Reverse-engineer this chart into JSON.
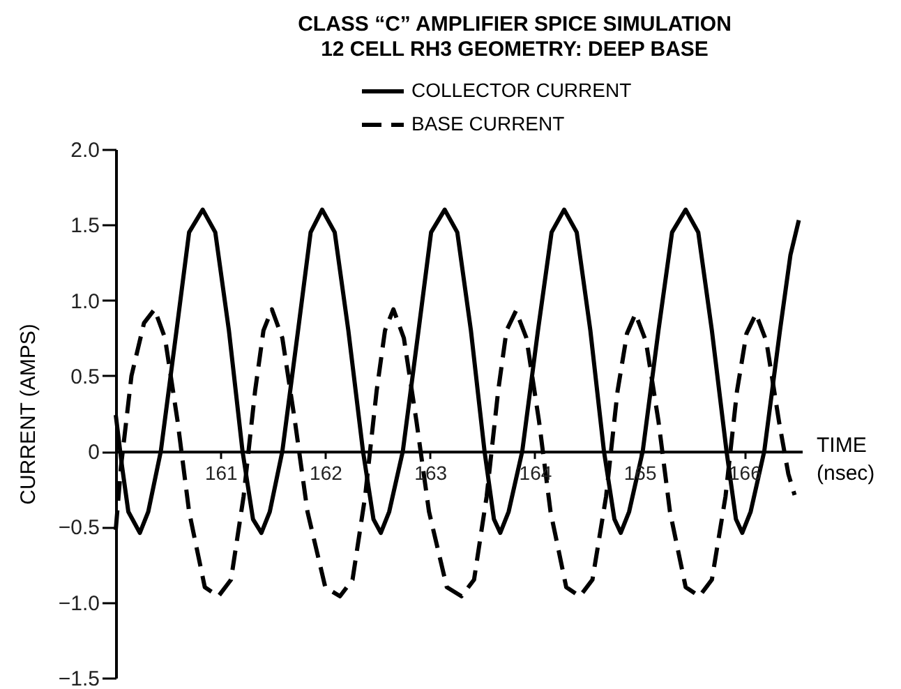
{
  "chart_data": {
    "type": "line",
    "title": "CLASS “C” AMPLIFIER SPICE SIMULATION",
    "subtitle": "12 CELL RH3 GEOMETRY: DEEP BASE",
    "xlabel": "TIME (nsec)",
    "ylabel": "CURRENT (AMPS)",
    "xlim": [
      160,
      166.55
    ],
    "xticks": [
      161,
      162,
      163,
      164,
      165,
      166
    ],
    "ylim": [
      -1.5,
      2.0
    ],
    "yticks": [
      {
        "value": 2.0,
        "label": "2.0"
      },
      {
        "value": 1.5,
        "label": "1.5"
      },
      {
        "value": 1.0,
        "label": "1.0"
      },
      {
        "value": 0.5,
        "label": "0.5"
      },
      0,
      {
        "value": -0.5,
        "label": "−0.5"
      },
      {
        "value": -1.0,
        "label": "−1.0"
      },
      {
        "value": -1.5,
        "label": "−1.5"
      }
    ],
    "grid": false,
    "legend": "top",
    "marker": "none",
    "series": [
      {
        "name": "COLLECTOR CURRENT",
        "color": "#000000",
        "line_style": "solid",
        "x": [
          160.0,
          160.06,
          160.12,
          160.23,
          160.31,
          160.43,
          160.58,
          160.7,
          160.83,
          160.95,
          161.08,
          161.21,
          161.31,
          161.39,
          161.47,
          161.59,
          161.74,
          161.86,
          161.97,
          162.09,
          162.22,
          162.36,
          162.46,
          162.53,
          162.61,
          162.74,
          162.89,
          163.01,
          163.14,
          163.26,
          163.39,
          163.52,
          163.61,
          163.67,
          163.75,
          163.88,
          164.03,
          164.16,
          164.28,
          164.4,
          164.53,
          164.66,
          164.76,
          164.82,
          164.9,
          165.03,
          165.18,
          165.31,
          165.44,
          165.56,
          165.69,
          165.83,
          165.92,
          165.98,
          166.06,
          166.19,
          166.34,
          166.44,
          166.52
        ],
        "values": [
          0.24,
          -0.1,
          -0.4,
          -0.54,
          -0.4,
          0.0,
          0.8,
          1.45,
          1.6,
          1.45,
          0.8,
          0.0,
          -0.45,
          -0.54,
          -0.4,
          0.0,
          0.8,
          1.45,
          1.6,
          1.45,
          0.8,
          0.0,
          -0.45,
          -0.54,
          -0.4,
          0.0,
          0.8,
          1.45,
          1.6,
          1.45,
          0.8,
          0.0,
          -0.45,
          -0.54,
          -0.4,
          0.0,
          0.8,
          1.45,
          1.6,
          1.45,
          0.8,
          0.0,
          -0.45,
          -0.54,
          -0.4,
          0.0,
          0.8,
          1.45,
          1.6,
          1.45,
          0.8,
          0.0,
          -0.45,
          -0.54,
          -0.4,
          0.0,
          0.8,
          1.3,
          1.53
        ]
      },
      {
        "name": "BASE CURRENT",
        "color": "#000000",
        "line_style": "dashed",
        "x": [
          160.0,
          160.05,
          160.15,
          160.27,
          160.37,
          160.47,
          160.59,
          160.7,
          160.85,
          160.98,
          161.1,
          161.22,
          161.33,
          161.41,
          161.49,
          161.59,
          161.71,
          161.83,
          162.0,
          162.14,
          162.26,
          162.38,
          162.49,
          162.57,
          162.65,
          162.75,
          162.87,
          162.99,
          163.16,
          163.3,
          163.42,
          163.54,
          163.65,
          163.73,
          163.82,
          163.92,
          164.04,
          164.15,
          164.3,
          164.43,
          164.55,
          164.68,
          164.79,
          164.88,
          164.96,
          165.06,
          165.18,
          165.29,
          165.44,
          165.57,
          165.69,
          165.82,
          165.93,
          166.02,
          166.11,
          166.21,
          166.33,
          166.42,
          166.48
        ],
        "values": [
          -0.52,
          -0.1,
          0.5,
          0.85,
          0.94,
          0.75,
          0.2,
          -0.4,
          -0.9,
          -0.96,
          -0.85,
          -0.3,
          0.4,
          0.8,
          0.94,
          0.75,
          0.2,
          -0.4,
          -0.9,
          -0.96,
          -0.85,
          -0.3,
          0.4,
          0.8,
          0.94,
          0.75,
          0.2,
          -0.4,
          -0.9,
          -0.96,
          -0.85,
          -0.3,
          0.4,
          0.8,
          0.93,
          0.75,
          0.2,
          -0.4,
          -0.9,
          -0.96,
          -0.85,
          -0.3,
          0.4,
          0.78,
          0.91,
          0.73,
          0.2,
          -0.4,
          -0.9,
          -0.96,
          -0.85,
          -0.3,
          0.4,
          0.78,
          0.91,
          0.73,
          0.2,
          -0.15,
          -0.29
        ]
      }
    ]
  }
}
